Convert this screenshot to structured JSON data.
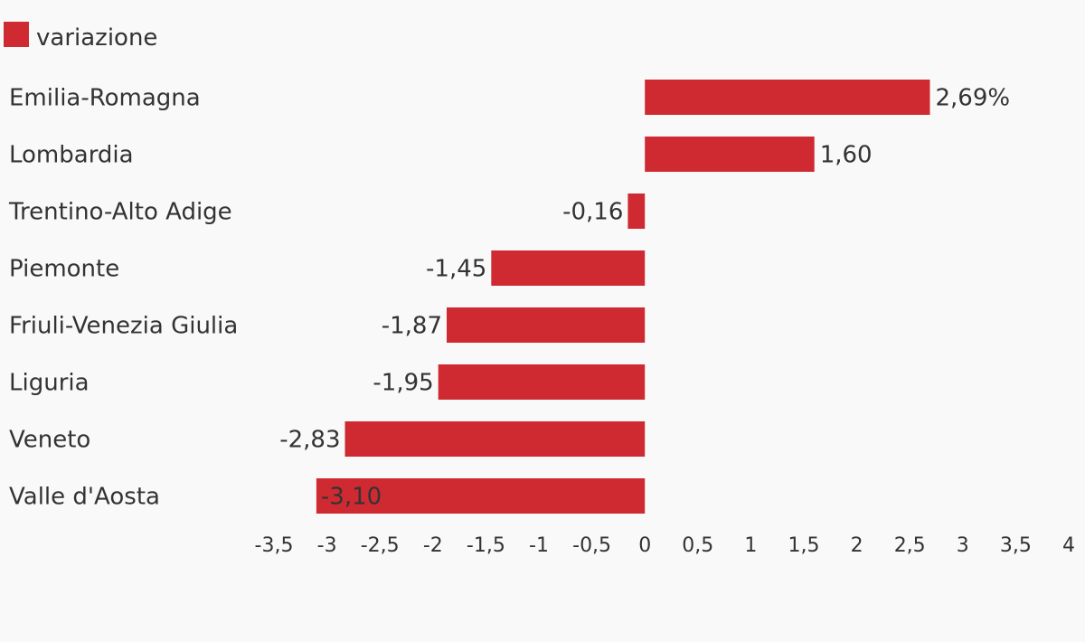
{
  "chart_data": {
    "type": "bar",
    "orientation": "horizontal",
    "legend": {
      "label": "variazione",
      "position": "top-left"
    },
    "categories": [
      "Emilia-Romagna",
      "Lombardia",
      "Trentino-Alto Adige",
      "Piemonte",
      "Friuli-Venezia Giulia",
      "Liguria",
      "Veneto",
      "Valle d'Aosta"
    ],
    "values": [
      2.69,
      1.6,
      -0.16,
      -1.45,
      -1.87,
      -1.95,
      -2.83,
      -3.1
    ],
    "value_labels": [
      "2,69%",
      "1,60",
      "-0,16",
      "-1,45",
      "-1,87",
      "-1,95",
      "-2,83",
      "-3,10"
    ],
    "xlim": [
      -3.5,
      4
    ],
    "x_ticks": [
      "-3,5",
      "-3",
      "-2,5",
      "-2",
      "-1,5",
      "-1",
      "-0,5",
      "0",
      "0,5",
      "1",
      "1,5",
      "2",
      "2,5",
      "3",
      "3,5",
      "4"
    ],
    "x_tick_values": [
      -3.5,
      -3,
      -2.5,
      -2,
      -1.5,
      -1,
      -0.5,
      0,
      0.5,
      1,
      1.5,
      2,
      2.5,
      3,
      3.5,
      4
    ],
    "bar_color": "#cf2a31",
    "grid": false,
    "title": "",
    "xlabel": "",
    "ylabel": ""
  }
}
